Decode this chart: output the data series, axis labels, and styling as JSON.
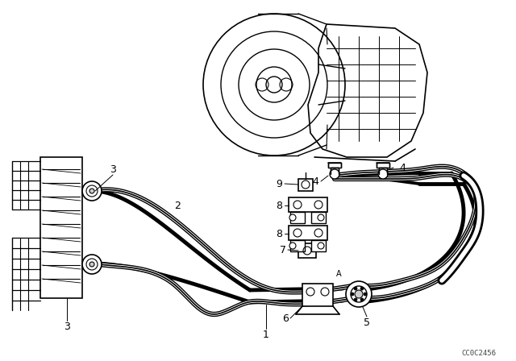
{
  "bg_color": "#ffffff",
  "line_color": "#000000",
  "fig_width": 6.4,
  "fig_height": 4.48,
  "dpi": 100,
  "watermark": "CC0C2456"
}
